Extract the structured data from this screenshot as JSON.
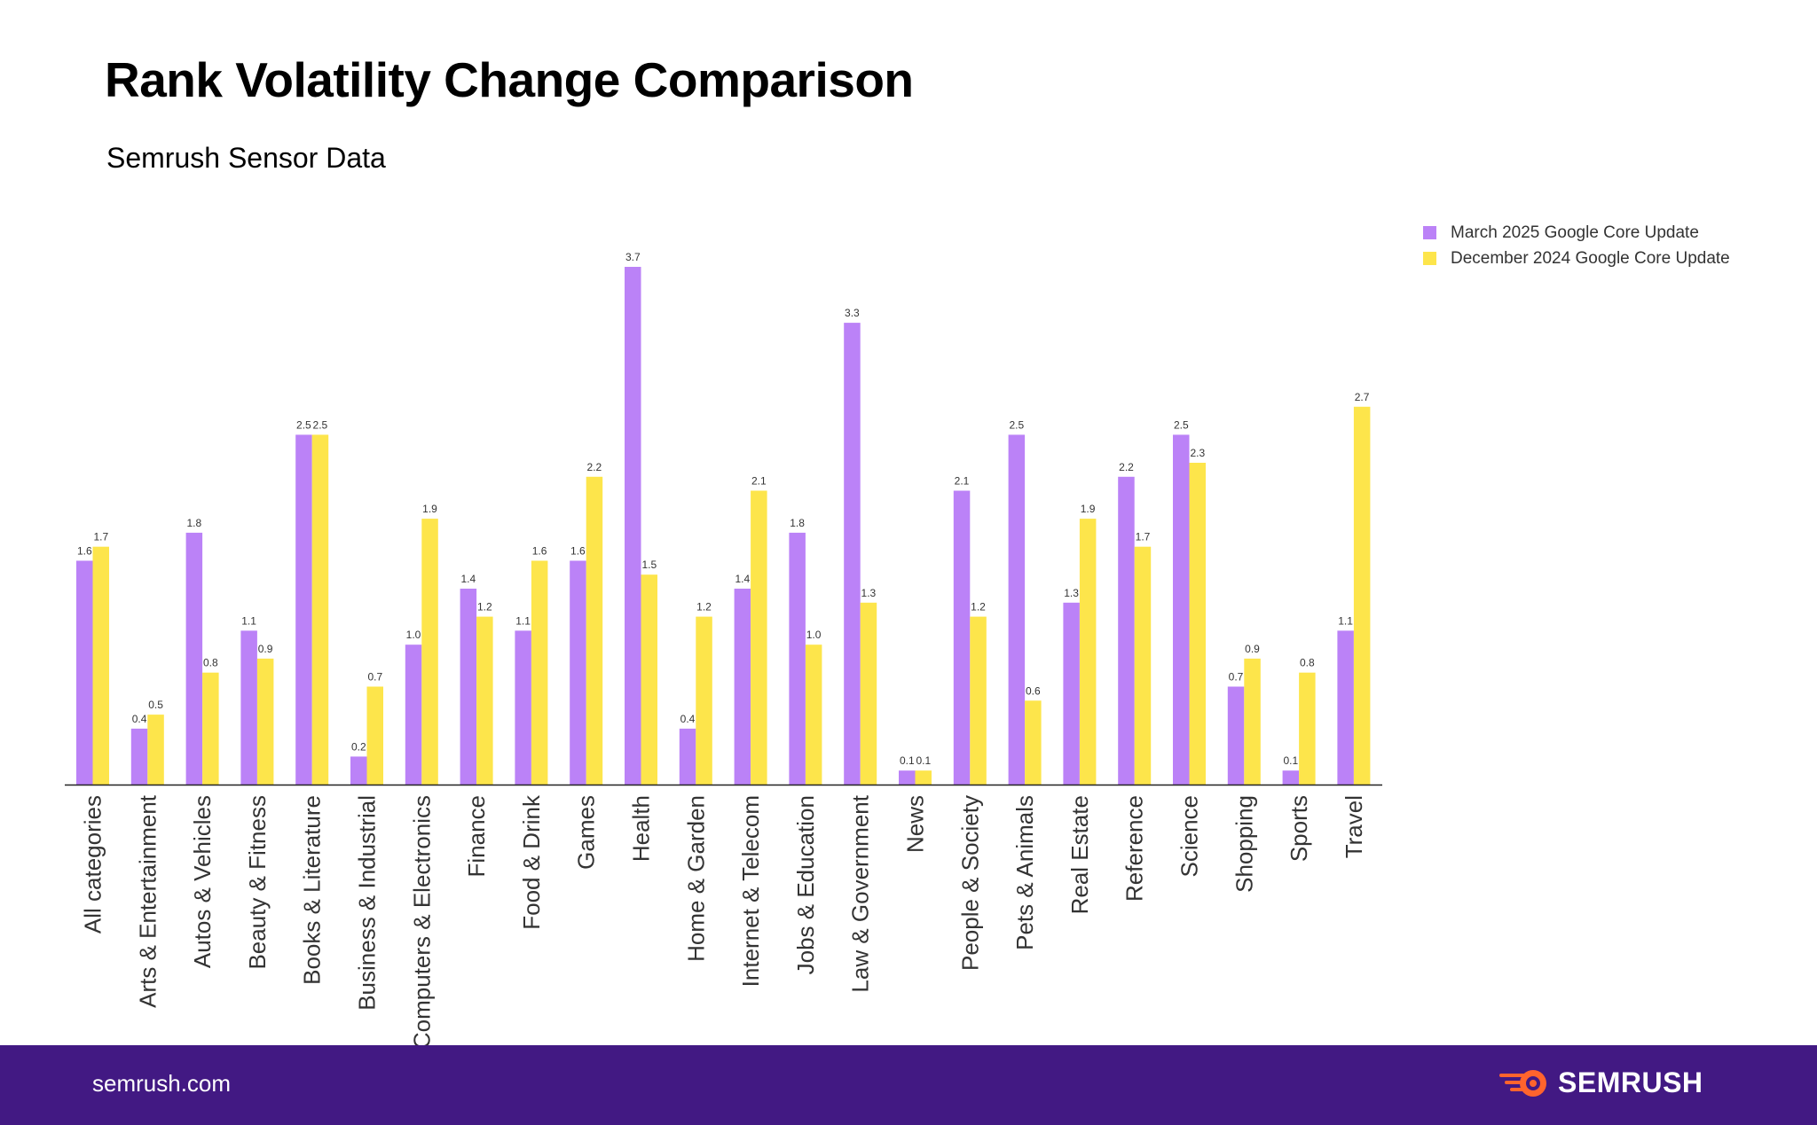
{
  "title": "Rank Volatility Change Comparison",
  "subtitle": "Semrush Sensor Data",
  "footer": {
    "url": "semrush.com",
    "brand": "SEMRUSH"
  },
  "colors": {
    "march": "#bb82f7",
    "december": "#fde54b",
    "footer_bg": "#421983",
    "brand_accent": "#ff642d"
  },
  "chart_data": {
    "type": "bar",
    "title": "Rank Volatility Change Comparison",
    "subtitle": "Semrush Sensor Data",
    "xlabel": "",
    "ylabel": "",
    "ylim": [
      0,
      3.7
    ],
    "grid": false,
    "legend_position": "top-right",
    "categories": [
      "All categories",
      "Arts & Entertainment",
      "Autos & Vehicles",
      "Beauty & Fitness",
      "Books & Literature",
      "Business & Industrial",
      "Computers & Electronics",
      "Finance",
      "Food & Drink",
      "Games",
      "Health",
      "Home & Garden",
      "Internet & Telecom",
      "Jobs & Education",
      "Law & Government",
      "News",
      "People & Society",
      "Pets & Animals",
      "Real Estate",
      "Reference",
      "Science",
      "Shopping",
      "Sports",
      "Travel"
    ],
    "series": [
      {
        "name": "March 2025 Google Core Update",
        "color": "#bb82f7",
        "values": [
          1.6,
          0.4,
          1.8,
          1.1,
          2.5,
          0.2,
          1.0,
          1.4,
          1.1,
          1.6,
          3.7,
          0.4,
          1.4,
          1.8,
          3.3,
          0.1,
          2.1,
          2.5,
          1.3,
          2.2,
          2.5,
          0.7,
          0.1,
          1.1
        ]
      },
      {
        "name": "December 2024 Google Core Update",
        "color": "#fde54b",
        "values": [
          1.7,
          0.5,
          0.8,
          0.9,
          2.5,
          0.7,
          1.9,
          1.2,
          1.6,
          2.2,
          1.5,
          1.2,
          2.1,
          1.0,
          1.3,
          0.1,
          1.2,
          0.6,
          1.9,
          1.7,
          2.3,
          0.9,
          0.8,
          2.7
        ]
      }
    ]
  }
}
